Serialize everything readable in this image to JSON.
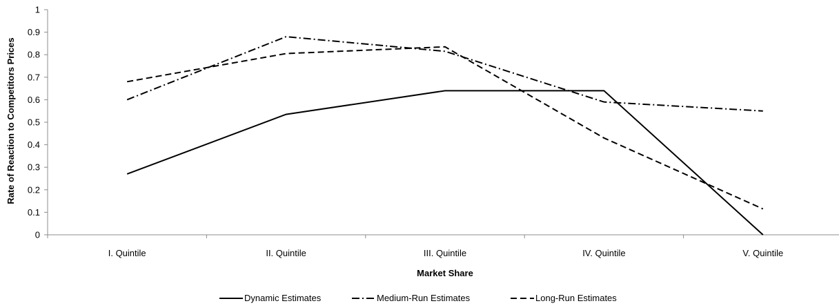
{
  "chart_data": {
    "type": "line",
    "title": "",
    "xlabel": "Market Share",
    "ylabel": "Rate of Reaction to Competitors Prices",
    "categories": [
      "I. Quintile",
      "II. Quintile",
      "III. Quintile",
      "IV. Quintile",
      "V. Quintile"
    ],
    "ylim": [
      0,
      1
    ],
    "yticks": [
      "0",
      "0.1",
      "0.2",
      "0.3",
      "0.4",
      "0.5",
      "0.6",
      "0.7",
      "0.8",
      "0.9",
      "1"
    ],
    "grid": false,
    "legend_position": "bottom",
    "series": [
      {
        "name": "Dynamic Estimates",
        "values": [
          0.27,
          0.535,
          0.64,
          0.64,
          0.0
        ],
        "dash": "solid",
        "color": "#000000"
      },
      {
        "name": "Medium-Run Estimates",
        "values": [
          0.6,
          0.88,
          0.815,
          0.59,
          0.55
        ],
        "dash": "dashdot",
        "color": "#000000"
      },
      {
        "name": "Long-Run Estimates",
        "values": [
          0.68,
          0.805,
          0.835,
          0.43,
          0.115
        ],
        "dash": "dashed",
        "color": "#000000"
      }
    ]
  }
}
